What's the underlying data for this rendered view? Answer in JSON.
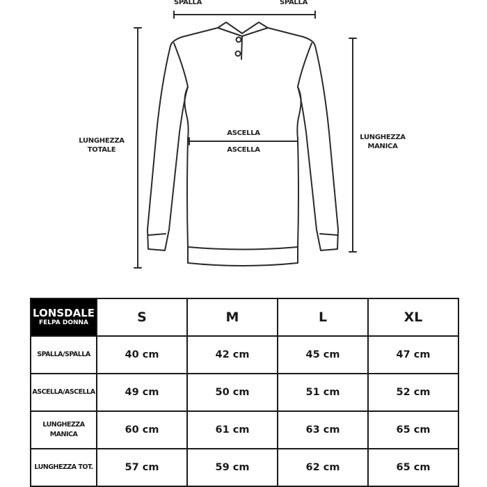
{
  "diagram": {
    "shoulder_label_left": "SPALLA",
    "shoulder_label_right": "SPALLA",
    "chest_label_top": "ASCELLA",
    "chest_label_bottom": "ASCELLA",
    "total_length_label": [
      "LUNGHEZZA",
      "TOTALE"
    ],
    "sleeve_length_label": [
      "LUNGHEZZA",
      "MANICA"
    ]
  },
  "table": {
    "brand": "LONSDALE",
    "product": "FELPA DONNA",
    "sizes": [
      "S",
      "M",
      "L",
      "XL"
    ],
    "rows": [
      {
        "label": [
          "SPALLA/SPALLA"
        ],
        "values": [
          "40 cm",
          "42 cm",
          "45 cm",
          "47 cm"
        ]
      },
      {
        "label": [
          "ASCELLA/ASCELLA"
        ],
        "values": [
          "49 cm",
          "50 cm",
          "51 cm",
          "52 cm"
        ]
      },
      {
        "label": [
          "LUNGHEZZA",
          "MANICA"
        ],
        "values": [
          "60 cm",
          "61 cm",
          "63 cm",
          "65 cm"
        ]
      },
      {
        "label": [
          "LUNGHEZZA TOT."
        ],
        "values": [
          "57 cm",
          "59 cm",
          "62 cm",
          "65 cm"
        ]
      }
    ]
  }
}
